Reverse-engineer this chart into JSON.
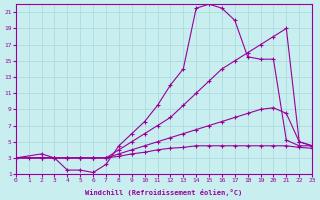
{
  "xlabel": "Windchill (Refroidissement éolien,°C)",
  "background_color": "#c8eef0",
  "grid_color": "#a8d8da",
  "line_color": "#990099",
  "x_ticks": [
    0,
    1,
    2,
    3,
    4,
    5,
    6,
    7,
    8,
    9,
    10,
    11,
    12,
    13,
    14,
    15,
    16,
    17,
    18,
    19,
    20,
    21,
    22,
    23
  ],
  "y_ticks": [
    1,
    3,
    5,
    7,
    9,
    11,
    13,
    15,
    17,
    19,
    21
  ],
  "xlim": [
    0,
    23
  ],
  "ylim": [
    1,
    22
  ],
  "line1_x": [
    0,
    2,
    3,
    4,
    5,
    6,
    7,
    8,
    9,
    10,
    11,
    12,
    13,
    14,
    15,
    16,
    17,
    18,
    19,
    20,
    21,
    22,
    23
  ],
  "line1_y": [
    3,
    3,
    3,
    1.5,
    1.5,
    1.2,
    2.2,
    4.5,
    6,
    7.5,
    9.5,
    12,
    14,
    21.5,
    22,
    21.5,
    20,
    15.5,
    15.2,
    15.2,
    5.2,
    4.5,
    4.5
  ],
  "line2_x": [
    0,
    2,
    3,
    4,
    5,
    6,
    7,
    8,
    9,
    10,
    11,
    12,
    13,
    14,
    15,
    16,
    17,
    18,
    19,
    20,
    21,
    22,
    23
  ],
  "line2_y": [
    3,
    3,
    3,
    3,
    3,
    3,
    3,
    4,
    5,
    6,
    7,
    8,
    9.5,
    11,
    12.5,
    14,
    15,
    16,
    17,
    18,
    19,
    5,
    4.5
  ],
  "line3_x": [
    0,
    2,
    3,
    4,
    5,
    6,
    7,
    8,
    9,
    10,
    11,
    12,
    13,
    14,
    15,
    16,
    17,
    18,
    19,
    20,
    21,
    22,
    23
  ],
  "line3_y": [
    3,
    3.5,
    3,
    3,
    3,
    3,
    3,
    3.5,
    4,
    4.5,
    5,
    5.5,
    6,
    6.5,
    7,
    7.5,
    8,
    8.5,
    9,
    9.2,
    8.5,
    5,
    4.5
  ],
  "line4_x": [
    0,
    1,
    2,
    3,
    4,
    5,
    6,
    7,
    8,
    9,
    10,
    11,
    12,
    13,
    14,
    15,
    16,
    17,
    18,
    19,
    20,
    21,
    22,
    23
  ],
  "line4_y": [
    3,
    3,
    3,
    3,
    3,
    3,
    3,
    3,
    3.2,
    3.5,
    3.7,
    4,
    4.2,
    4.3,
    4.5,
    4.5,
    4.5,
    4.5,
    4.5,
    4.5,
    4.5,
    4.5,
    4.3,
    4.2
  ]
}
